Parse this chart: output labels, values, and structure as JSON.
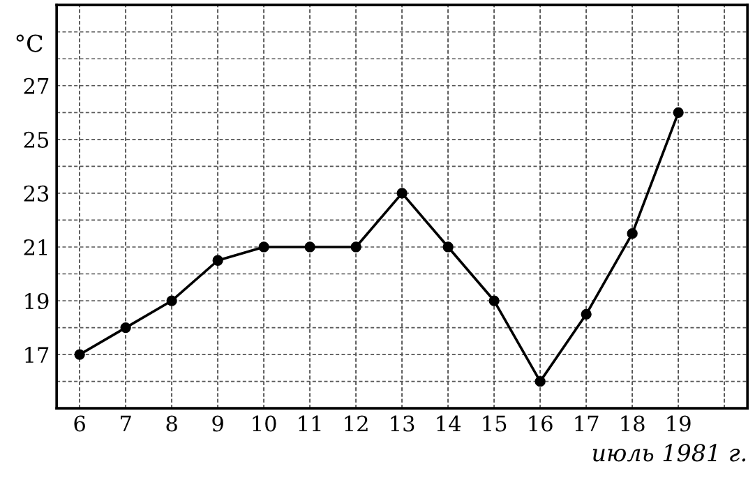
{
  "chart_data": {
    "type": "line",
    "xlabel": "июль 1981 г.",
    "ylabel": "°C",
    "x": [
      6,
      7,
      8,
      9,
      10,
      11,
      12,
      13,
      14,
      15,
      16,
      17,
      18,
      19
    ],
    "series": [
      {
        "color": "#000000",
        "values": [
          17,
          18,
          19,
          20.5,
          21,
          21,
          21,
          23,
          21,
          19,
          16,
          18.5,
          21.5,
          26
        ]
      }
    ],
    "xlim": [
      5.5,
      20.5
    ],
    "ylim": [
      15,
      30
    ],
    "xticks": [
      6,
      7,
      8,
      9,
      10,
      11,
      12,
      13,
      14,
      15,
      16,
      17,
      18,
      19,
      {
        "value": 20,
        "label": null
      }
    ],
    "yticks": [
      {
        "value": 16,
        "label": null
      },
      17,
      {
        "value": 18,
        "label": null
      },
      19,
      {
        "value": 20,
        "label": null
      },
      21,
      {
        "value": 22,
        "label": null
      },
      23,
      {
        "value": 24,
        "label": null
      },
      25,
      {
        "value": 26,
        "label": null
      },
      27,
      {
        "value": 28,
        "label": null
      },
      {
        "value": 29,
        "label": null
      }
    ],
    "grid": true,
    "marker": "circle",
    "line_style": "solid"
  }
}
